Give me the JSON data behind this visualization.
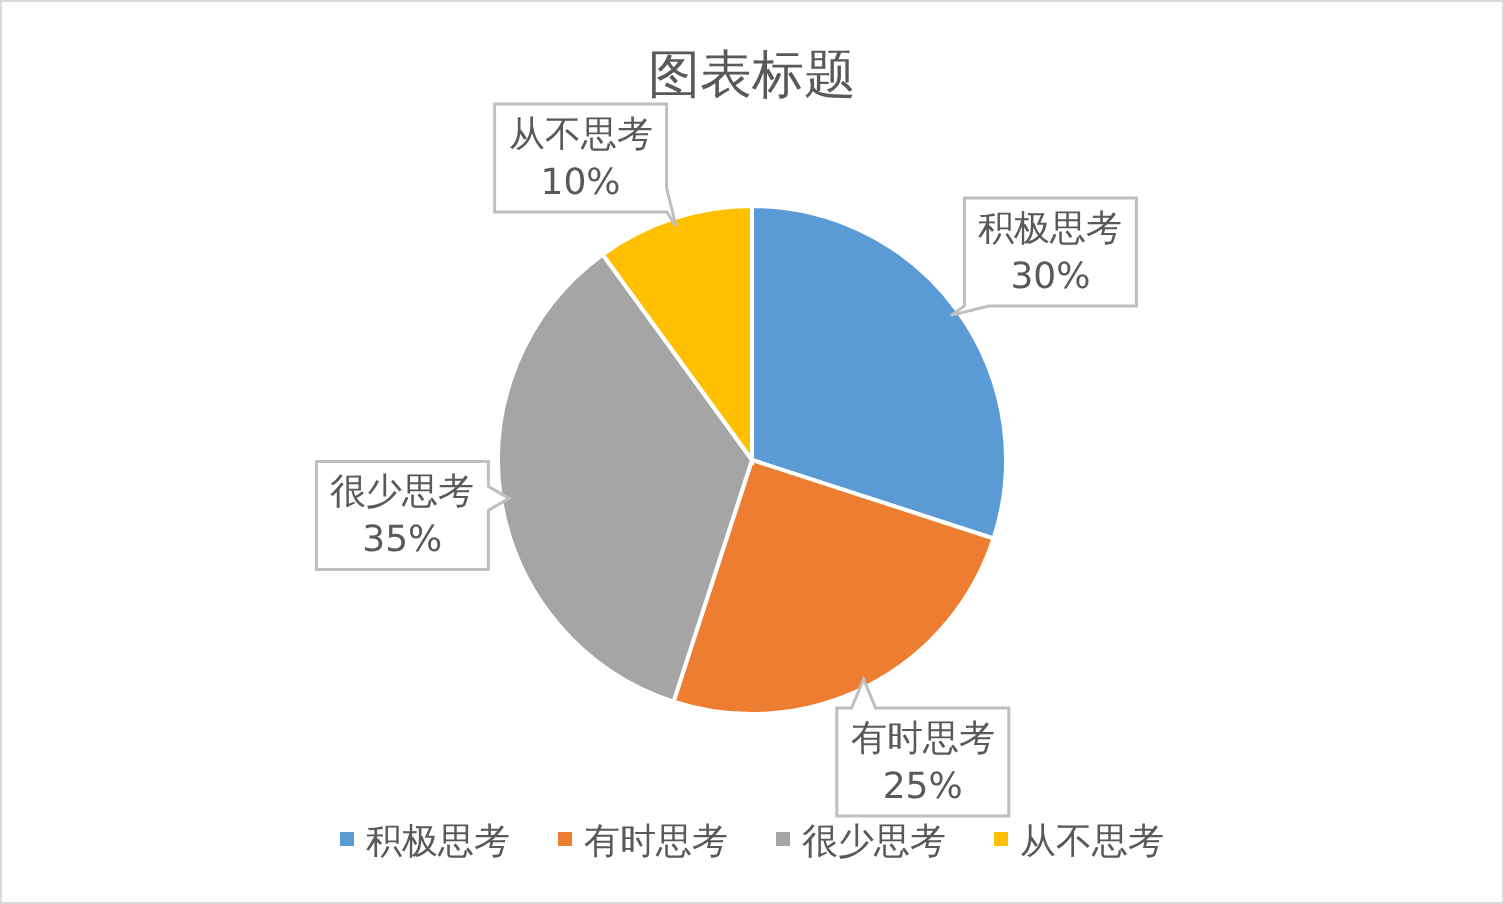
{
  "chart_data": {
    "type": "pie",
    "title": "图表标题",
    "categories": [
      "积极思考",
      "有时思考",
      "很少思考",
      "从不思考"
    ],
    "values": [
      30,
      25,
      35,
      10
    ],
    "colors": [
      "#5b9bd5",
      "#ed7d31",
      "#a5a5a5",
      "#ffc000"
    ],
    "value_labels": [
      "30%",
      "25%",
      "35%",
      "10%"
    ],
    "legend": "bottom"
  }
}
